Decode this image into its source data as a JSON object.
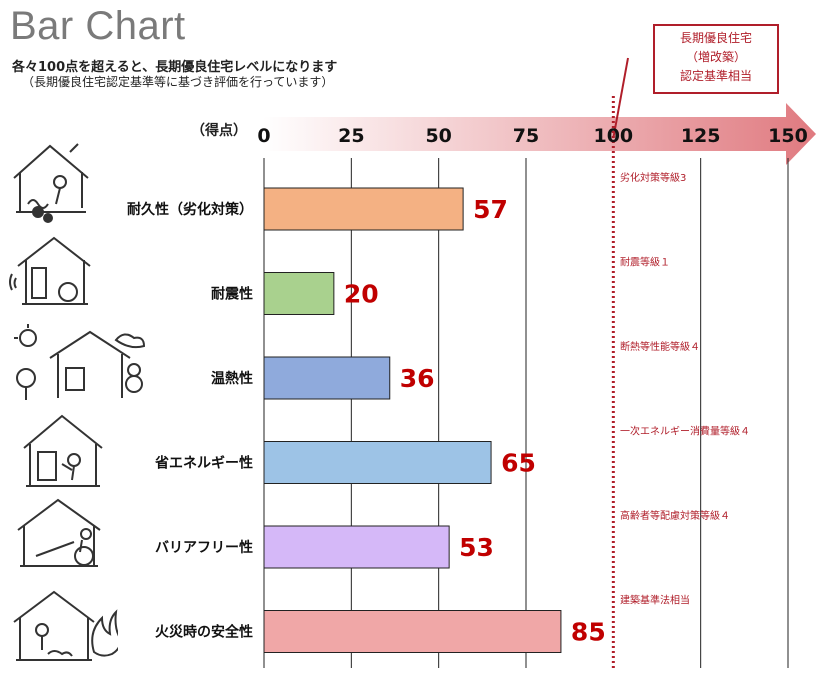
{
  "title": "Bar Chart",
  "subtitle": "各々100点を超えると、長期優良住宅レベルになります",
  "subtitle_note": "（長期優良住宅認定基準等に基づき評価を行っています）",
  "callout": {
    "lines": [
      "長期優良住宅",
      "（増改築）",
      "認定基準相当"
    ]
  },
  "colors": {
    "accent": "#b01e2a",
    "value_label": "#c00000",
    "arrow_start": "#ffffff",
    "arrow_end": "#e07a80"
  },
  "chart_data": {
    "type": "bar",
    "orientation": "horizontal",
    "xlabel": "（得点）",
    "xlim": [
      0,
      150
    ],
    "xticks": [
      0,
      25,
      50,
      75,
      100,
      125,
      150
    ],
    "grid": true,
    "reference_line": {
      "x": 100,
      "style": "dotted",
      "color": "#b01e2a"
    },
    "categories": [
      "耐久性（劣化対策）",
      "耐震性",
      "温熱性",
      "省エネルギー性",
      "バリアフリー性",
      "火災時の安全性"
    ],
    "values": [
      57,
      20,
      36,
      65,
      53,
      85
    ],
    "bar_colors": [
      "#f4b183",
      "#a9d18e",
      "#8faadc",
      "#9dc3e6",
      "#d5b8f8",
      "#f0a7a7"
    ],
    "annotations": [
      "劣化対策等級3",
      "耐震等級１",
      "断熱等性能等級４",
      "一次エネルギー消費量等級４",
      "高齢者等配慮対策等級４",
      "建築基準法相当"
    ],
    "icons": [
      "house-damage-icon",
      "house-earthquake-icon",
      "house-weather-icon",
      "house-energy-icon",
      "house-wheelchair-icon",
      "house-fire-icon"
    ]
  }
}
